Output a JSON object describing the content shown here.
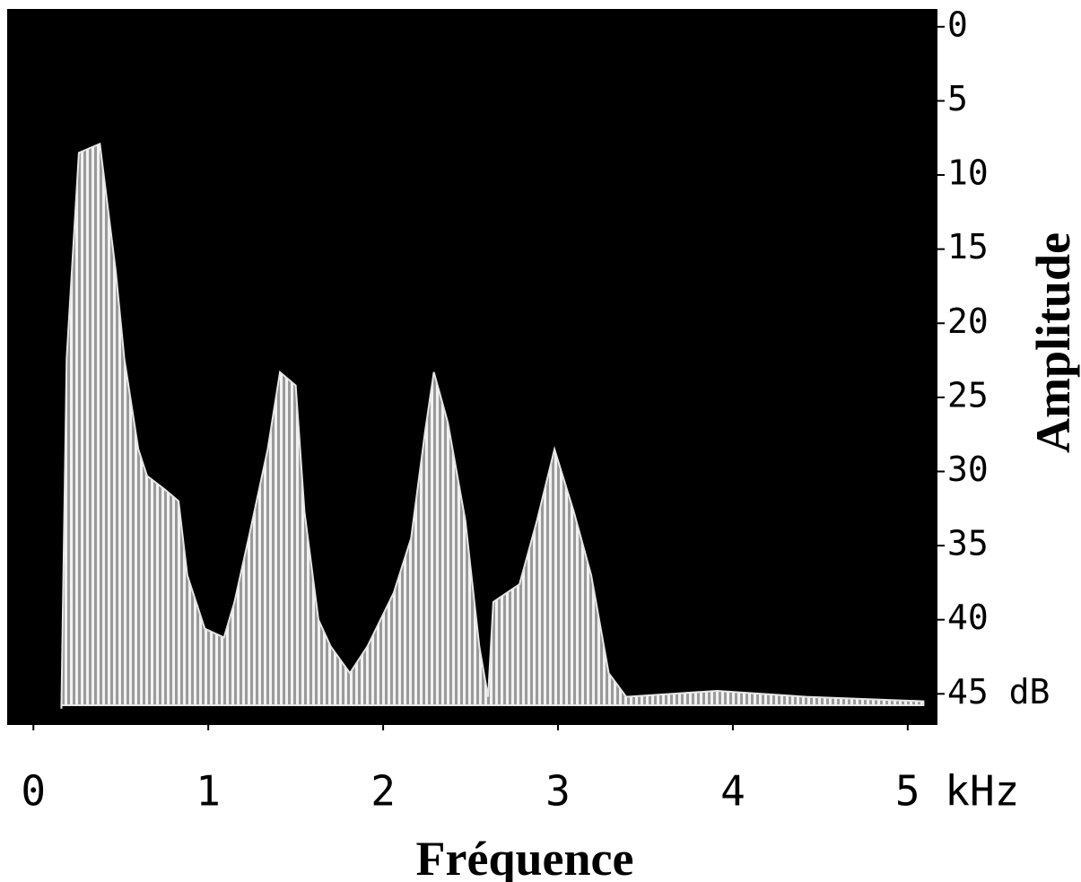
{
  "chart_data": {
    "type": "area",
    "x_label": "Fréquence",
    "y_label": "Amplitude",
    "x": [
      0.16,
      0.19,
      0.26,
      0.38,
      0.47,
      0.52,
      0.6,
      0.65,
      0.75,
      0.83,
      0.88,
      0.98,
      1.09,
      1.15,
      1.24,
      1.34,
      1.41,
      1.5,
      1.55,
      1.63,
      1.7,
      1.81,
      1.91,
      2.06,
      2.16,
      2.24,
      2.29,
      2.37,
      2.47,
      2.55,
      2.6,
      2.63,
      2.78,
      2.88,
      2.98,
      3.09,
      3.19,
      3.29,
      3.39,
      3.91,
      4.42,
      5.09
    ],
    "values": [
      46,
      22.4,
      8.5,
      7.9,
      16.4,
      22.4,
      28.5,
      30.3,
      31.2,
      32,
      37,
      40.6,
      41.2,
      38.8,
      34,
      28.5,
      23.3,
      24.2,
      32.7,
      40,
      41.8,
      43.6,
      41.8,
      38.2,
      34.5,
      27.3,
      23.3,
      26.7,
      33.3,
      41.8,
      45.2,
      38.8,
      37.6,
      33.3,
      28.5,
      32.7,
      37,
      43.6,
      45.2,
      44.8,
      45.2,
      45.5
    ],
    "color": "#e6e6e6",
    "plot_background": "#000000",
    "xlim": [
      -0.15,
      5.17
    ],
    "xticks": [
      0,
      1,
      2,
      3,
      4,
      {
        "value": 5,
        "label": "5 kHz"
      }
    ],
    "ylim": [
      47.1,
      -1.2
    ],
    "yticks": [
      0,
      5,
      10,
      15,
      20,
      25,
      30,
      35,
      40,
      {
        "value": 45,
        "label": "45 dB"
      }
    ]
  }
}
